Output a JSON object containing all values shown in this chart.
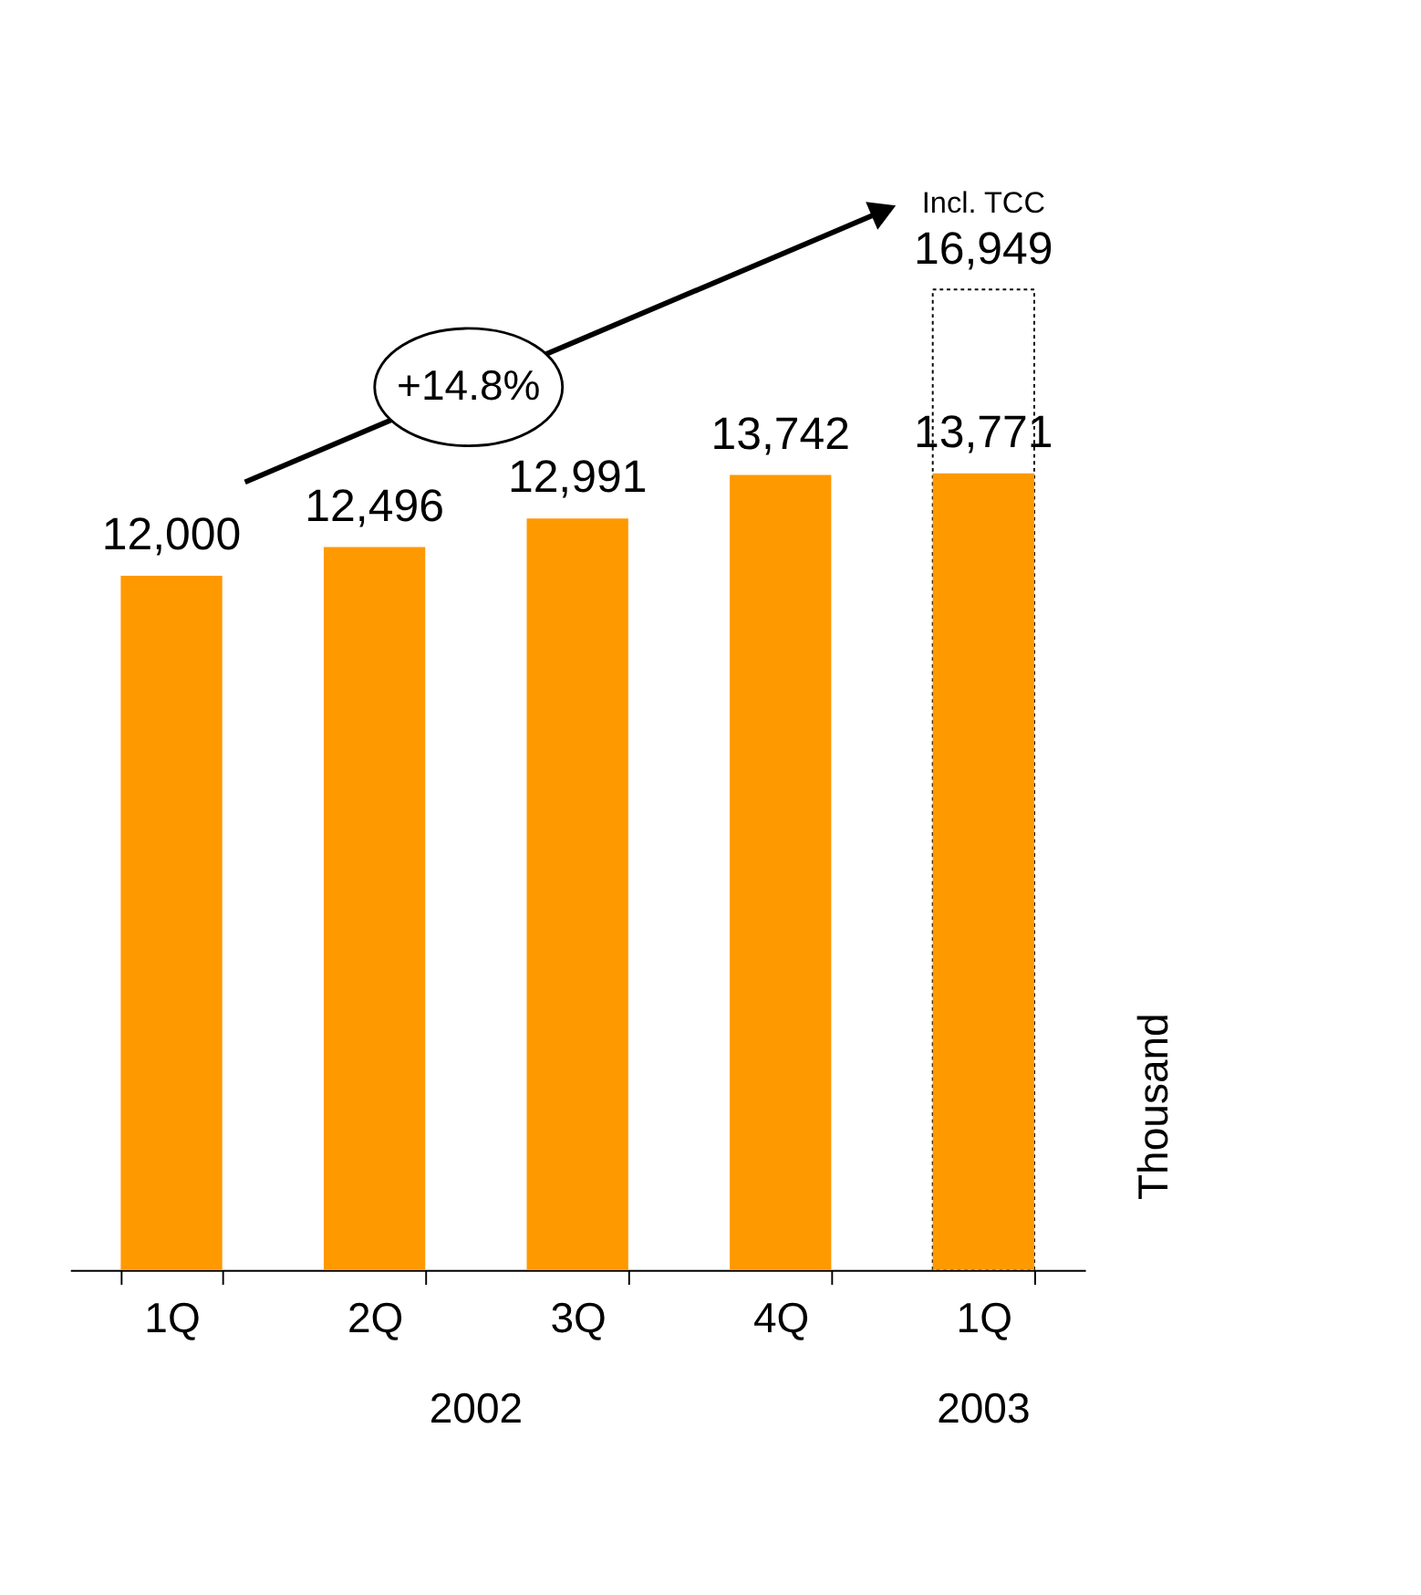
{
  "chart_data": {
    "type": "bar",
    "categories": [
      "1Q",
      "2Q",
      "3Q",
      "4Q",
      "1Q"
    ],
    "series": [
      {
        "color": "#ff9900",
        "values": [
          12000,
          12496,
          12991,
          13742,
          13771
        ],
        "value_labels": [
          "12,000",
          "12,496",
          "12,991",
          "13,742",
          "13,771"
        ]
      },
      {
        "color": "#ffffff",
        "line_style": "dotted",
        "values": [
          null,
          null,
          null,
          null,
          16949
        ],
        "value_labels": [
          null,
          null,
          null,
          null,
          "16,949"
        ]
      }
    ],
    "ylabel": "Thousand",
    "annotations": [
      "+14.8%",
      "2002",
      "2003",
      "Incl. TCC"
    ]
  }
}
